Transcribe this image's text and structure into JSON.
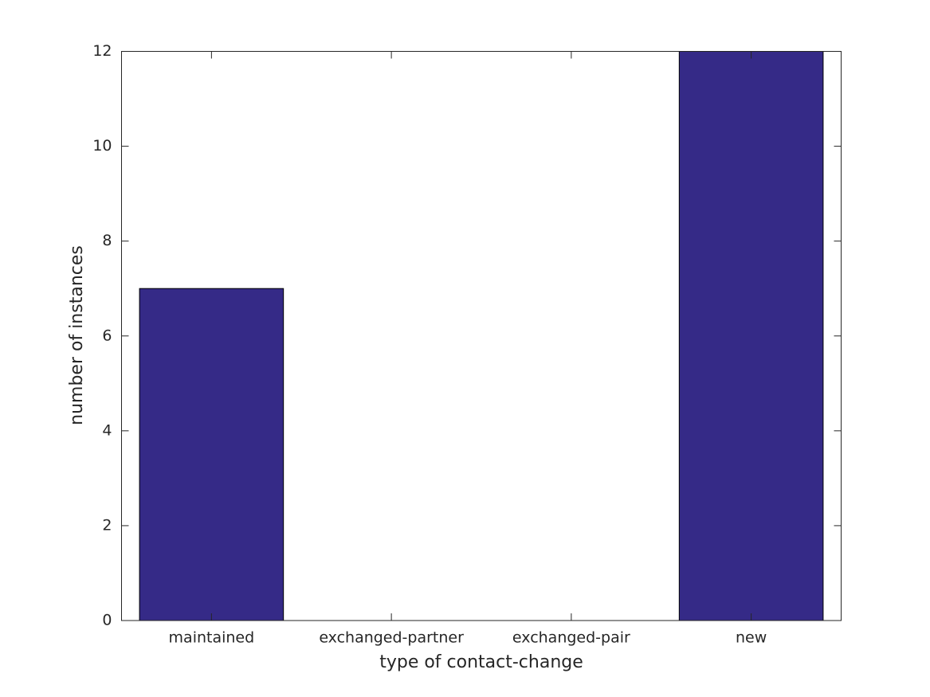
{
  "chart_data": {
    "type": "bar",
    "xlabel": "type of contact-change",
    "ylabel": "number of instances",
    "categories": [
      "maintained",
      "exchanged-partner",
      "exchanged-pair",
      "new"
    ],
    "values": [
      7,
      0,
      0,
      12
    ],
    "color": "#352a87",
    "ylim": [
      0,
      12
    ],
    "yticks": [
      0,
      2,
      4,
      6,
      8,
      10,
      12
    ],
    "grid": false
  }
}
